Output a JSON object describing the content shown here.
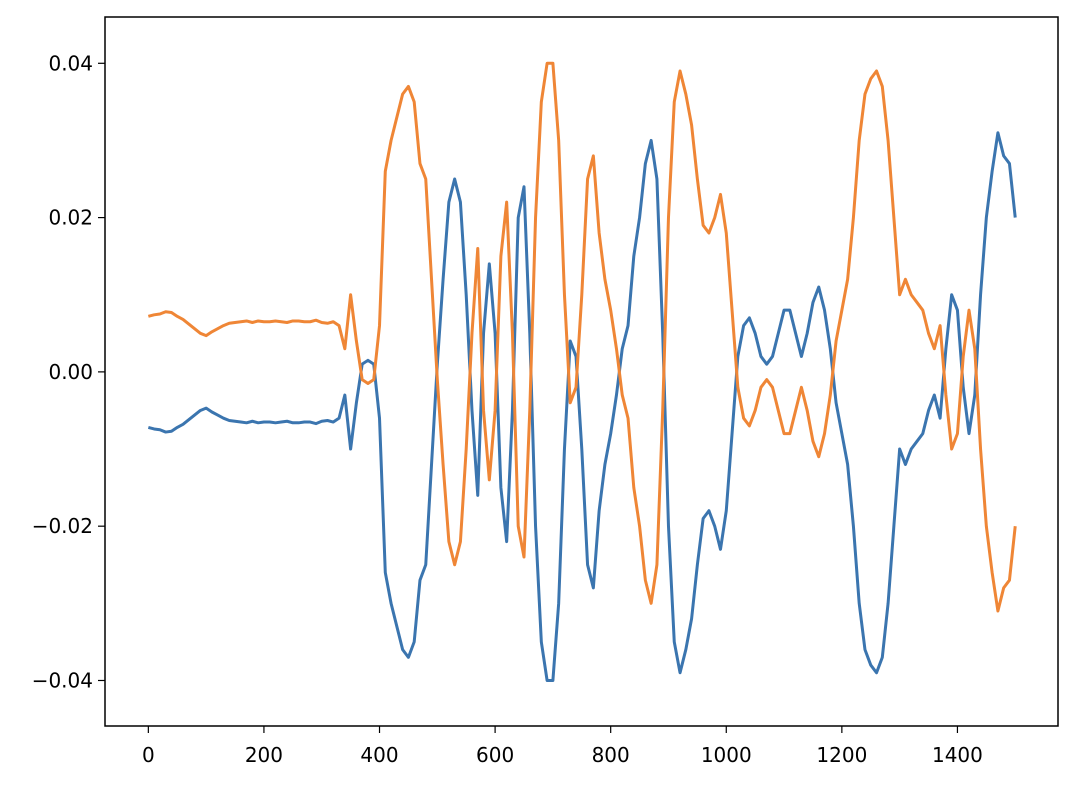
{
  "chart_data": {
    "type": "line",
    "x": [
      0,
      10,
      20,
      30,
      40,
      50,
      60,
      70,
      80,
      90,
      100,
      110,
      120,
      130,
      140,
      150,
      160,
      170,
      180,
      190,
      200,
      210,
      220,
      230,
      240,
      250,
      260,
      270,
      280,
      290,
      300,
      310,
      320,
      330,
      340,
      350,
      360,
      370,
      380,
      390,
      400,
      410,
      420,
      430,
      440,
      450,
      460,
      470,
      480,
      490,
      500,
      510,
      520,
      530,
      540,
      550,
      560,
      570,
      580,
      590,
      600,
      610,
      620,
      630,
      640,
      650,
      660,
      670,
      680,
      690,
      700,
      710,
      720,
      730,
      740,
      750,
      760,
      770,
      780,
      790,
      800,
      810,
      820,
      830,
      840,
      850,
      860,
      870,
      880,
      890,
      900,
      910,
      920,
      930,
      940,
      950,
      960,
      970,
      980,
      990,
      1000,
      1010,
      1020,
      1030,
      1040,
      1050,
      1060,
      1070,
      1080,
      1090,
      1100,
      1110,
      1120,
      1130,
      1140,
      1150,
      1160,
      1170,
      1180,
      1190,
      1200,
      1210,
      1220,
      1230,
      1240,
      1250,
      1260,
      1270,
      1280,
      1290,
      1300,
      1310,
      1320,
      1330,
      1340,
      1350,
      1360,
      1370,
      1380,
      1390,
      1400,
      1410,
      1420,
      1430,
      1440,
      1450,
      1460,
      1470,
      1480,
      1490,
      1500
    ],
    "series": [
      {
        "color": "#3b75af",
        "values": [
          -0.0072,
          -0.0074,
          -0.0075,
          -0.0078,
          -0.0077,
          -0.0072,
          -0.0068,
          -0.0062,
          -0.0056,
          -0.005,
          -0.0047,
          -0.0052,
          -0.0056,
          -0.006,
          -0.0063,
          -0.0064,
          -0.0065,
          -0.0066,
          -0.0064,
          -0.0066,
          -0.0065,
          -0.0065,
          -0.0066,
          -0.0065,
          -0.0064,
          -0.0066,
          -0.0066,
          -0.0065,
          -0.0065,
          -0.0067,
          -0.0064,
          -0.0063,
          -0.0065,
          -0.006,
          -0.003,
          -0.01,
          -0.004,
          0.001,
          0.0015,
          0.001,
          -0.006,
          -0.026,
          -0.03,
          -0.033,
          -0.036,
          -0.037,
          -0.035,
          -0.027,
          -0.025,
          -0.012,
          0.001,
          0.012,
          0.022,
          0.025,
          0.022,
          0.01,
          -0.005,
          -0.016,
          0.005,
          0.014,
          0.005,
          -0.015,
          -0.022,
          -0.005,
          0.02,
          0.024,
          0.005,
          -0.02,
          -0.035,
          -0.04,
          -0.04,
          -0.03,
          -0.01,
          0.004,
          0.002,
          -0.01,
          -0.025,
          -0.028,
          -0.018,
          -0.012,
          -0.008,
          -0.003,
          0.003,
          0.006,
          0.015,
          0.02,
          0.027,
          0.03,
          0.025,
          0.005,
          -0.02,
          -0.035,
          -0.039,
          -0.036,
          -0.032,
          -0.025,
          -0.019,
          -0.018,
          -0.02,
          -0.023,
          -0.018,
          -0.008,
          0.002,
          0.006,
          0.007,
          0.005,
          0.002,
          0.001,
          0.002,
          0.005,
          0.008,
          0.008,
          0.005,
          0.002,
          0.005,
          0.009,
          0.011,
          0.008,
          0.003,
          -0.004,
          -0.008,
          -0.012,
          -0.02,
          -0.03,
          -0.036,
          -0.038,
          -0.039,
          -0.037,
          -0.03,
          -0.02,
          -0.01,
          -0.012,
          -0.01,
          -0.009,
          -0.008,
          -0.005,
          -0.003,
          -0.006,
          0.003,
          0.01,
          0.008,
          -0.002,
          -0.008,
          -0.003,
          0.01,
          0.02,
          0.026,
          0.031,
          0.028,
          0.027,
          0.02
        ]
      },
      {
        "color": "#ef8636",
        "values": [
          0.0072,
          0.0074,
          0.0075,
          0.0078,
          0.0077,
          0.0072,
          0.0068,
          0.0062,
          0.0056,
          0.005,
          0.0047,
          0.0052,
          0.0056,
          0.006,
          0.0063,
          0.0064,
          0.0065,
          0.0066,
          0.0064,
          0.0066,
          0.0065,
          0.0065,
          0.0066,
          0.0065,
          0.0064,
          0.0066,
          0.0066,
          0.0065,
          0.0065,
          0.0067,
          0.0064,
          0.0063,
          0.0065,
          0.006,
          0.003,
          0.01,
          0.004,
          -0.001,
          -0.0015,
          -0.001,
          0.006,
          0.026,
          0.03,
          0.033,
          0.036,
          0.037,
          0.035,
          0.027,
          0.025,
          0.012,
          -0.001,
          -0.012,
          -0.022,
          -0.025,
          -0.022,
          -0.01,
          0.005,
          0.016,
          -0.005,
          -0.014,
          -0.005,
          0.015,
          0.022,
          0.005,
          -0.02,
          -0.024,
          -0.005,
          0.02,
          0.035,
          0.04,
          0.04,
          0.03,
          0.01,
          -0.004,
          -0.002,
          0.01,
          0.025,
          0.028,
          0.018,
          0.012,
          0.008,
          0.003,
          -0.003,
          -0.006,
          -0.015,
          -0.02,
          -0.027,
          -0.03,
          -0.025,
          -0.005,
          0.02,
          0.035,
          0.039,
          0.036,
          0.032,
          0.025,
          0.019,
          0.018,
          0.02,
          0.023,
          0.018,
          0.008,
          -0.002,
          -0.006,
          -0.007,
          -0.005,
          -0.002,
          -0.001,
          -0.002,
          -0.005,
          -0.008,
          -0.008,
          -0.005,
          -0.002,
          -0.005,
          -0.009,
          -0.011,
          -0.008,
          -0.003,
          0.004,
          0.008,
          0.012,
          0.02,
          0.03,
          0.036,
          0.038,
          0.039,
          0.037,
          0.03,
          0.02,
          0.01,
          0.012,
          0.01,
          0.009,
          0.008,
          0.005,
          0.003,
          0.006,
          -0.003,
          -0.01,
          -0.008,
          0.002,
          0.008,
          0.003,
          -0.01,
          -0.02,
          -0.026,
          -0.031,
          -0.028,
          -0.027,
          -0.02
        ]
      }
    ],
    "xlim": [
      -75,
      1574
    ],
    "ylim": [
      -0.0459,
      0.046
    ],
    "xticks": [
      0,
      200,
      400,
      600,
      800,
      1000,
      1200,
      1400
    ],
    "yticks": [
      {
        "value": -0.04,
        "label": "−0.04"
      },
      {
        "value": -0.02,
        "label": "−0.02"
      },
      {
        "value": 0,
        "label": "0.00"
      },
      {
        "value": 0.02,
        "label": "0.02"
      },
      {
        "value": 0.04,
        "label": "0.04"
      }
    ],
    "grid": false
  }
}
